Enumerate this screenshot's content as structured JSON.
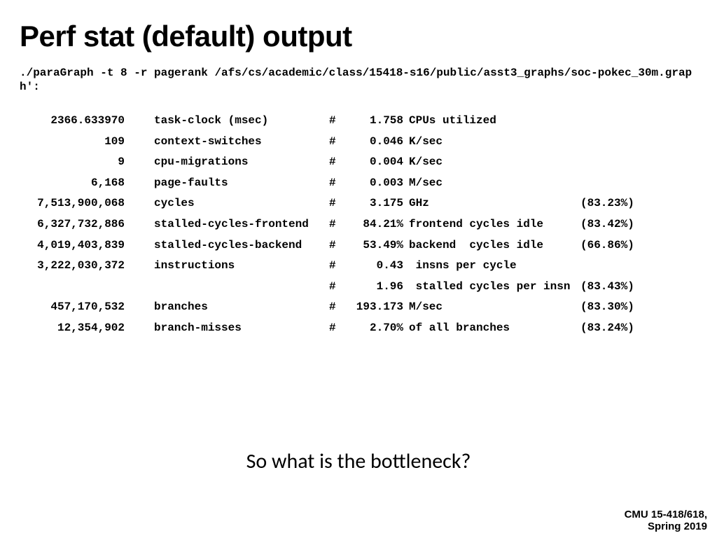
{
  "title": "Perf stat (default) output",
  "command": "./paraGraph -t 8 -r pagerank /afs/cs/academic/class/15418-s16/public/asst3_graphs/soc-pokec_30m.graph':",
  "rows": [
    {
      "value": "2366.633970",
      "metric": "task-clock (msec)",
      "hash": "#",
      "rate": "1.758",
      "desc": "CPUs utilized",
      "pct": ""
    },
    {
      "value": "109",
      "metric": "context-switches",
      "hash": "#",
      "rate": "0.046",
      "desc": "K/sec",
      "pct": ""
    },
    {
      "value": "9",
      "metric": "cpu-migrations",
      "hash": "#",
      "rate": "0.004",
      "desc": "K/sec",
      "pct": ""
    },
    {
      "value": "6,168",
      "metric": "page-faults",
      "hash": "#",
      "rate": "0.003",
      "desc": "M/sec",
      "pct": ""
    },
    {
      "value": "7,513,900,068",
      "metric": "cycles",
      "hash": "#",
      "rate": "3.175",
      "desc": "GHz",
      "pct": "(83.23%)"
    },
    {
      "value": "6,327,732,886",
      "metric": "stalled-cycles-frontend",
      "hash": "#",
      "rate": "84.21%",
      "desc": "frontend cycles idle",
      "pct": "(83.42%)"
    },
    {
      "value": "4,019,403,839",
      "metric": "stalled-cycles-backend",
      "hash": "#",
      "rate": "53.49%",
      "desc": "backend  cycles idle",
      "pct": "(66.86%)"
    },
    {
      "value": "3,222,030,372",
      "metric": "instructions",
      "hash": "#",
      "rate": "0.43",
      "desc": " insns per cycle",
      "pct": ""
    },
    {
      "value": "",
      "metric": "",
      "hash": "#",
      "rate": "1.96",
      "desc": " stalled cycles per insn",
      "pct": "(83.43%)"
    },
    {
      "value": "457,170,532",
      "metric": "branches",
      "hash": "#",
      "rate": "193.173",
      "desc": "M/sec",
      "pct": "(83.30%)"
    },
    {
      "value": "12,354,902",
      "metric": "branch-misses",
      "hash": "#",
      "rate": "2.70%",
      "desc": "of all branches",
      "pct": "(83.24%)"
    }
  ],
  "question": "So what is the bottleneck?",
  "footer": {
    "line1": "CMU 15-418/618,",
    "line2": "Spring 2019"
  },
  "colors": {
    "text": "#000000",
    "background": "#ffffff"
  },
  "typography": {
    "title_fontsize_pt": 32,
    "mono_fontsize_pt": 12,
    "question_fontsize_pt": 22,
    "footer_fontsize_pt": 11
  }
}
